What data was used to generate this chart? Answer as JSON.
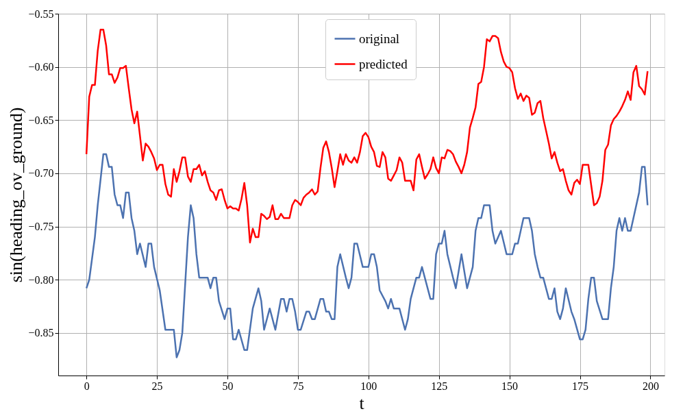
{
  "chart_data": {
    "type": "line",
    "xlabel": "t",
    "ylabel": "sin(heading_ov_ground)",
    "xlim": [
      -10,
      205
    ],
    "ylim": [
      -0.89,
      -0.55
    ],
    "xticks": [
      0,
      25,
      50,
      75,
      100,
      125,
      150,
      175,
      200
    ],
    "yticks": [
      {
        "value": -0.85,
        "label": "−0.85"
      },
      {
        "value": -0.8,
        "label": "−0.80"
      },
      {
        "value": -0.75,
        "label": "−0.75"
      },
      {
        "value": -0.7,
        "label": "−0.70"
      },
      {
        "value": -0.65,
        "label": "−0.65"
      },
      {
        "value": -0.6,
        "label": "−0.60"
      },
      {
        "value": -0.55,
        "label": "−0.55"
      }
    ],
    "grid": true,
    "legend": "top",
    "marker": "none",
    "line_style": "solid",
    "series": [
      {
        "name": "original",
        "color": "#4c72b0",
        "x": [
          0,
          1,
          3,
          4,
          6,
          7,
          8,
          9,
          10,
          11,
          12,
          13,
          14,
          15,
          16,
          17,
          18,
          19,
          21,
          22,
          23,
          24,
          26,
          28,
          31,
          32,
          33,
          34,
          36,
          37,
          38,
          39,
          40,
          43,
          44,
          45,
          46,
          47,
          49,
          50,
          51,
          52,
          53,
          54,
          56,
          57,
          59,
          61,
          62,
          63,
          65,
          67,
          69,
          70,
          71,
          72,
          73,
          74,
          75,
          76,
          78,
          79,
          80,
          81,
          83,
          84,
          85,
          86,
          87,
          88,
          89,
          90,
          92,
          93,
          94,
          95,
          96,
          98,
          100,
          101,
          102,
          103,
          104,
          106,
          107,
          108,
          109,
          111,
          113,
          114,
          115,
          117,
          118,
          119,
          121,
          122,
          123,
          124,
          125,
          126,
          127,
          128,
          130,
          131,
          133,
          135,
          137,
          138,
          139,
          140,
          141,
          143,
          144,
          145,
          147,
          149,
          151,
          152,
          153,
          155,
          157,
          158,
          159,
          160,
          161,
          162,
          163,
          164,
          165,
          166,
          167,
          168,
          169,
          170,
          172,
          173,
          175,
          176,
          177,
          178,
          179,
          180,
          181,
          183,
          185,
          186,
          187,
          188,
          189,
          190,
          191,
          192,
          193,
          196,
          197,
          198,
          199
        ],
        "values": [
          -0.808,
          -0.8,
          -0.76,
          -0.73,
          -0.682,
          -0.682,
          -0.694,
          -0.694,
          -0.72,
          -0.73,
          -0.73,
          -0.742,
          -0.718,
          -0.718,
          -0.742,
          -0.754,
          -0.776,
          -0.766,
          -0.788,
          -0.766,
          -0.766,
          -0.788,
          -0.81,
          -0.847,
          -0.847,
          -0.873,
          -0.866,
          -0.85,
          -0.76,
          -0.73,
          -0.742,
          -0.776,
          -0.798,
          -0.798,
          -0.808,
          -0.798,
          -0.798,
          -0.82,
          -0.837,
          -0.827,
          -0.827,
          -0.856,
          -0.856,
          -0.847,
          -0.866,
          -0.866,
          -0.827,
          -0.808,
          -0.82,
          -0.847,
          -0.827,
          -0.847,
          -0.818,
          -0.818,
          -0.83,
          -0.818,
          -0.818,
          -0.83,
          -0.847,
          -0.847,
          -0.83,
          -0.83,
          -0.837,
          -0.837,
          -0.818,
          -0.818,
          -0.83,
          -0.83,
          -0.837,
          -0.837,
          -0.788,
          -0.776,
          -0.798,
          -0.808,
          -0.798,
          -0.766,
          -0.766,
          -0.788,
          -0.788,
          -0.776,
          -0.776,
          -0.788,
          -0.81,
          -0.82,
          -0.827,
          -0.818,
          -0.827,
          -0.827,
          -0.847,
          -0.837,
          -0.818,
          -0.798,
          -0.798,
          -0.788,
          -0.808,
          -0.818,
          -0.818,
          -0.776,
          -0.766,
          -0.766,
          -0.754,
          -0.776,
          -0.798,
          -0.808,
          -0.776,
          -0.808,
          -0.788,
          -0.754,
          -0.742,
          -0.742,
          -0.73,
          -0.73,
          -0.754,
          -0.766,
          -0.754,
          -0.776,
          -0.776,
          -0.766,
          -0.766,
          -0.742,
          -0.742,
          -0.754,
          -0.776,
          -0.788,
          -0.798,
          -0.798,
          -0.808,
          -0.818,
          -0.818,
          -0.808,
          -0.83,
          -0.837,
          -0.827,
          -0.808,
          -0.83,
          -0.837,
          -0.856,
          -0.856,
          -0.847,
          -0.818,
          -0.798,
          -0.798,
          -0.82,
          -0.837,
          -0.837,
          -0.808,
          -0.788,
          -0.754,
          -0.742,
          -0.754,
          -0.742,
          -0.754,
          -0.754,
          -0.718,
          -0.694,
          -0.694,
          -0.73
        ]
      },
      {
        "name": "predicted",
        "color": "#ff0000",
        "x": [
          0,
          1,
          2,
          3,
          4,
          5,
          6,
          7,
          8,
          9,
          10,
          11,
          12,
          13,
          14,
          15,
          16,
          17,
          18,
          19,
          20,
          21,
          22,
          23,
          24,
          25,
          26,
          27,
          28,
          29,
          30,
          31,
          32,
          33,
          34,
          35,
          36,
          37,
          38,
          39,
          40,
          41,
          42,
          43,
          44,
          45,
          46,
          47,
          48,
          49,
          50,
          51,
          52,
          53,
          54,
          55,
          56,
          57,
          58,
          59,
          60,
          61,
          62,
          63,
          64,
          65,
          66,
          67,
          68,
          69,
          70,
          71,
          72,
          73,
          74,
          75,
          76,
          77,
          78,
          79,
          80,
          81,
          82,
          83,
          84,
          85,
          86,
          87,
          88,
          89,
          90,
          91,
          92,
          93,
          94,
          95,
          96,
          97,
          98,
          99,
          100,
          101,
          102,
          103,
          104,
          105,
          106,
          107,
          108,
          109,
          110,
          111,
          112,
          113,
          114,
          115,
          116,
          117,
          118,
          119,
          120,
          121,
          122,
          123,
          124,
          125,
          126,
          127,
          128,
          129,
          130,
          131,
          132,
          133,
          134,
          135,
          136,
          137,
          138,
          139,
          140,
          141,
          142,
          143,
          144,
          145,
          146,
          147,
          148,
          149,
          150,
          151,
          152,
          153,
          154,
          155,
          156,
          157,
          158,
          159,
          160,
          161,
          162,
          163,
          164,
          165,
          166,
          167,
          168,
          169,
          170,
          171,
          172,
          173,
          174,
          175,
          176,
          177,
          178,
          179,
          180,
          181,
          182,
          183,
          184,
          185,
          186,
          187,
          188,
          189,
          190,
          191,
          192,
          193,
          194,
          195,
          196,
          197,
          198,
          199
        ],
        "values": [
          -0.682,
          -0.628,
          -0.617,
          -0.617,
          -0.585,
          -0.565,
          -0.565,
          -0.58,
          -0.607,
          -0.607,
          -0.615,
          -0.61,
          -0.601,
          -0.601,
          -0.599,
          -0.62,
          -0.64,
          -0.653,
          -0.642,
          -0.665,
          -0.688,
          -0.672,
          -0.675,
          -0.68,
          -0.686,
          -0.697,
          -0.692,
          -0.692,
          -0.71,
          -0.72,
          -0.722,
          -0.696,
          -0.708,
          -0.698,
          -0.685,
          -0.685,
          -0.703,
          -0.708,
          -0.696,
          -0.696,
          -0.692,
          -0.702,
          -0.698,
          -0.708,
          -0.716,
          -0.718,
          -0.725,
          -0.716,
          -0.715,
          -0.725,
          -0.733,
          -0.731,
          -0.733,
          -0.733,
          -0.735,
          -0.724,
          -0.709,
          -0.73,
          -0.765,
          -0.752,
          -0.76,
          -0.76,
          -0.738,
          -0.74,
          -0.743,
          -0.741,
          -0.73,
          -0.743,
          -0.743,
          -0.738,
          -0.742,
          -0.742,
          -0.742,
          -0.73,
          -0.725,
          -0.727,
          -0.73,
          -0.723,
          -0.72,
          -0.718,
          -0.715,
          -0.72,
          -0.717,
          -0.695,
          -0.676,
          -0.67,
          -0.68,
          -0.695,
          -0.713,
          -0.698,
          -0.682,
          -0.692,
          -0.682,
          -0.688,
          -0.69,
          -0.685,
          -0.69,
          -0.68,
          -0.665,
          -0.662,
          -0.666,
          -0.675,
          -0.68,
          -0.693,
          -0.694,
          -0.68,
          -0.685,
          -0.705,
          -0.707,
          -0.702,
          -0.697,
          -0.685,
          -0.69,
          -0.707,
          -0.707,
          -0.707,
          -0.716,
          -0.687,
          -0.682,
          -0.694,
          -0.705,
          -0.701,
          -0.696,
          -0.685,
          -0.695,
          -0.7,
          -0.685,
          -0.686,
          -0.678,
          -0.679,
          -0.682,
          -0.689,
          -0.694,
          -0.7,
          -0.692,
          -0.68,
          -0.657,
          -0.648,
          -0.638,
          -0.616,
          -0.614,
          -0.6,
          -0.574,
          -0.576,
          -0.571,
          -0.571,
          -0.573,
          -0.586,
          -0.595,
          -0.6,
          -0.601,
          -0.605,
          -0.62,
          -0.63,
          -0.625,
          -0.632,
          -0.627,
          -0.629,
          -0.645,
          -0.643,
          -0.634,
          -0.632,
          -0.648,
          -0.66,
          -0.672,
          -0.686,
          -0.68,
          -0.69,
          -0.698,
          -0.696,
          -0.707,
          -0.716,
          -0.72,
          -0.709,
          -0.706,
          -0.71,
          -0.692,
          -0.692,
          -0.692,
          -0.711,
          -0.73,
          -0.728,
          -0.722,
          -0.707,
          -0.678,
          -0.673,
          -0.655,
          -0.649,
          -0.646,
          -0.642,
          -0.637,
          -0.631,
          -0.623,
          -0.631,
          -0.605,
          -0.599,
          -0.618,
          -0.621,
          -0.626,
          -0.604
        ]
      }
    ]
  }
}
